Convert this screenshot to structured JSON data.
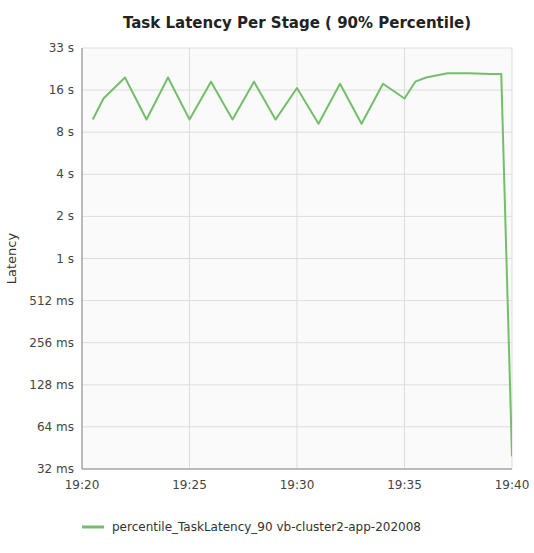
{
  "chart_data": {
    "type": "line",
    "title": "Task Latency Per Stage ( 90% Percentile)",
    "y_label": "Latency",
    "x": [
      0.5,
      1,
      2,
      3,
      4,
      5,
      6,
      7,
      8,
      9,
      10,
      11,
      12,
      13,
      14,
      15,
      15.5,
      16,
      17,
      18,
      19,
      19.5,
      20
    ],
    "series": [
      {
        "name": "percentile_TaskLatency_90 vb-cluster2-app-202008",
        "color": "#73bf69",
        "values": [
          8.3,
          8.8,
          9.3,
          8.3,
          9.3,
          8.3,
          9.2,
          8.3,
          9.2,
          8.3,
          9.05,
          8.2,
          9.15,
          8.2,
          9.15,
          8.8,
          9.2,
          9.3,
          9.4,
          9.4,
          9.38,
          9.38,
          0.3
        ]
      }
    ],
    "xlim": [
      0,
      20
    ],
    "xticks": [
      {
        "value": 0,
        "label": "19:20"
      },
      {
        "value": 5,
        "label": "19:25"
      },
      {
        "value": 10,
        "label": "19:30"
      },
      {
        "value": 15,
        "label": "19:35"
      },
      {
        "value": 20,
        "label": "19:40"
      }
    ],
    "ylim": [
      0,
      10
    ],
    "yticks": [
      {
        "value": 10,
        "label": "33 s"
      },
      {
        "value": 9,
        "label": "16 s"
      },
      {
        "value": 8,
        "label": "8 s"
      },
      {
        "value": 7,
        "label": "4 s"
      },
      {
        "value": 6,
        "label": "2 s"
      },
      {
        "value": 5,
        "label": "1 s"
      },
      {
        "value": 4,
        "label": "512 ms"
      },
      {
        "value": 3,
        "label": "256 ms"
      },
      {
        "value": 2,
        "label": "128 ms"
      },
      {
        "value": 1,
        "label": "64 ms"
      },
      {
        "value": 0,
        "label": "32 ms"
      }
    ],
    "grid": true,
    "legend": "bottom"
  }
}
